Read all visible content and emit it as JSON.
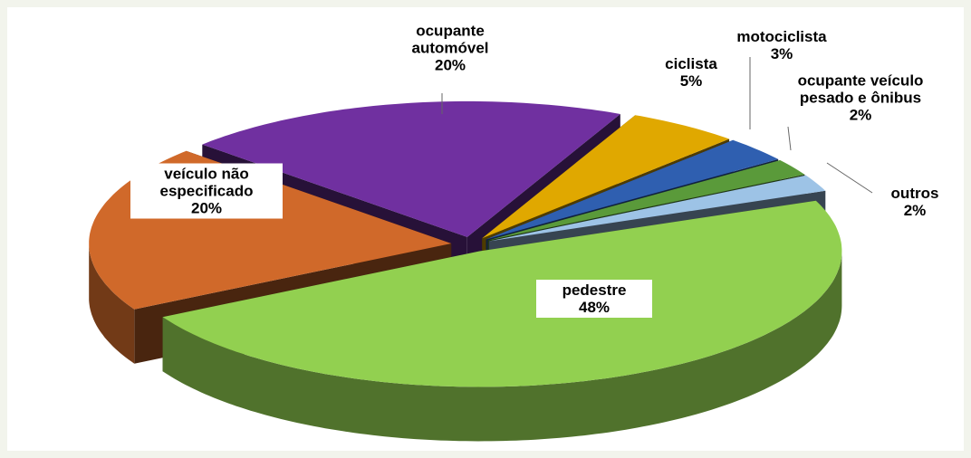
{
  "chart_data": {
    "type": "pie",
    "three_d": true,
    "exploded": true,
    "categories": [
      "ciclista",
      "motociclista",
      "ocupante veículo pesado e ônibus",
      "outros",
      "pedestre",
      "veículo não especificado",
      "ocupante automóvel"
    ],
    "values": [
      5,
      3,
      2,
      2,
      48,
      20,
      20
    ],
    "value_labels": [
      "5%",
      "3%",
      "2%",
      "2%",
      "48%",
      "20%",
      "20%"
    ],
    "colors": [
      "#e0a800",
      "#2f5fb0",
      "#5a9a3a",
      "#9dc3e6",
      "#92d050",
      "#d0692a",
      "#7030a0"
    ]
  }
}
